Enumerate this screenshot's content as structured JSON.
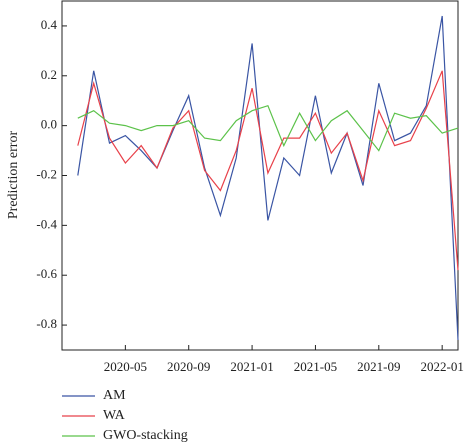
{
  "chart_data": {
    "type": "line",
    "y_label": "Prediction error",
    "x": [
      "2020-02",
      "2020-03",
      "2020-04",
      "2020-05",
      "2020-06",
      "2020-07",
      "2020-08",
      "2020-09",
      "2020-10",
      "2020-11",
      "2020-12",
      "2021-01",
      "2021-02",
      "2021-03",
      "2021-04",
      "2021-05",
      "2021-06",
      "2021-07",
      "2021-08",
      "2021-09",
      "2021-10",
      "2021-11",
      "2021-12",
      "2022-01",
      "2022-02"
    ],
    "series": [
      {
        "name": "AM",
        "color": "#3a55a4",
        "values": [
          -0.2,
          0.22,
          -0.07,
          -0.04,
          -0.1,
          -0.17,
          -0.02,
          0.12,
          -0.17,
          -0.36,
          -0.13,
          0.33,
          -0.38,
          -0.13,
          -0.2,
          0.12,
          -0.19,
          -0.03,
          -0.24,
          0.17,
          -0.06,
          -0.03,
          0.08,
          0.44,
          -0.86
        ]
      },
      {
        "name": "WA",
        "color": "#e8414a",
        "values": [
          -0.08,
          0.17,
          -0.05,
          -0.15,
          -0.08,
          -0.17,
          -0.01,
          0.06,
          -0.18,
          -0.26,
          -0.1,
          0.15,
          -0.19,
          -0.05,
          -0.05,
          0.05,
          -0.11,
          -0.03,
          -0.22,
          0.06,
          -0.08,
          -0.06,
          0.07,
          0.22,
          -0.58
        ]
      },
      {
        "name": "GWO-stacking",
        "color": "#5cc24a",
        "values": [
          0.03,
          0.06,
          0.01,
          0.0,
          -0.02,
          0.0,
          0.0,
          0.02,
          -0.05,
          -0.06,
          0.02,
          0.06,
          0.08,
          -0.08,
          0.05,
          -0.06,
          0.02,
          0.06,
          -0.02,
          -0.1,
          0.05,
          0.03,
          0.04,
          -0.03,
          -0.01
        ]
      }
    ],
    "xlim": [
      "2020-01",
      "2022-02"
    ],
    "xticks": [
      "2020-05",
      "2020-09",
      "2021-01",
      "2021-05",
      "2021-09",
      "2022-01"
    ],
    "ylim": [
      -0.9,
      0.5
    ],
    "yticks": [
      0.4,
      0.2,
      {
        "value": 0,
        "label": "0.0"
      },
      -0.2,
      -0.4,
      -0.6,
      -0.8
    ],
    "legend": "bottom"
  }
}
